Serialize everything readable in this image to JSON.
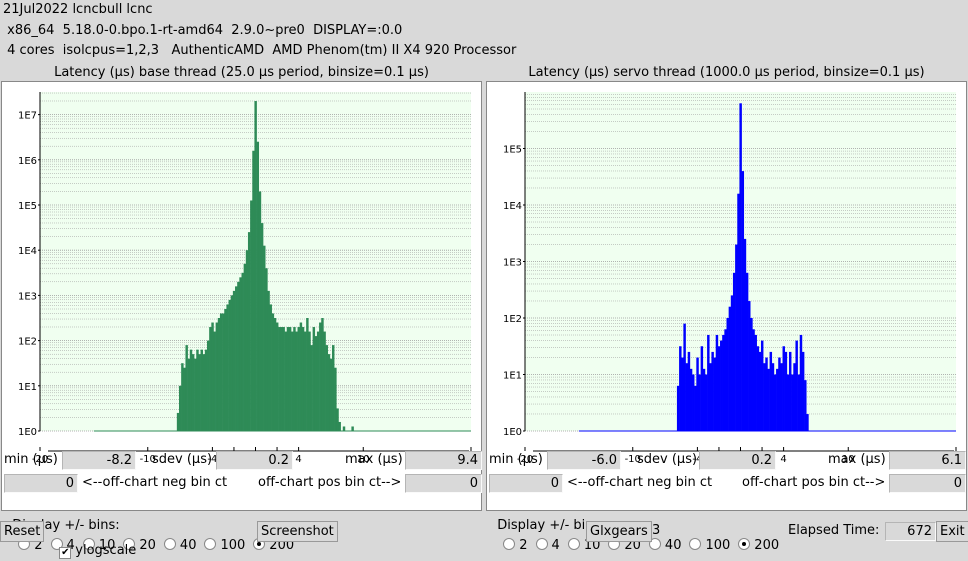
{
  "header": {
    "line1": "21Jul2022 lcncbull lcnc",
    "line2": " x86_64  5.18.0-0.bpo.1-rt-amd64  2.9.0~pre0  DISPLAY=:0.0",
    "line3": " 4 cores  isolcpus=1,2,3   AuthenticAMD  AMD Phenom(tm) II X4 920 Processor"
  },
  "colors": {
    "base": "#2e8b57",
    "servo": "#0000ff",
    "grid": "#9a9a9a",
    "plot_bg": "#f0fff0"
  },
  "panels": [
    {
      "title": "Latency (µs) base thread (25.0 µs period, binsize=0.1 µs)",
      "min_label": "min (µs)",
      "min": "-8.2",
      "sdev_label": "sdev (µs)",
      "sdev": "0.2",
      "max_label": "max (µs)",
      "max": "9.4",
      "neg_value": "0",
      "neg_label": "<--off-chart neg bin ct",
      "pos_label": "off-chart pos bin ct-->",
      "pos_value": "0",
      "bins_label": "Display +/- bins:",
      "bins": [
        "2",
        "4",
        "10",
        "20",
        "40",
        "100",
        "200"
      ],
      "bins_selected": "200"
    },
    {
      "title": "Latency (µs) servo thread (1000.0 µs period, binsize=0.1 µs)",
      "min_label": "min (µs)",
      "min": "-6.0",
      "sdev_label": "sdev (µs)",
      "sdev": "0.2",
      "max_label": "max (µs)",
      "max": "6.1",
      "neg_value": "0",
      "neg_label": "<--off-chart neg bin ct",
      "pos_label": "off-chart pos bin ct-->",
      "pos_value": "0",
      "bins_label": "Display +/- bins:",
      "bins": [
        "2",
        "4",
        "10",
        "20",
        "40",
        "100",
        "200"
      ],
      "bins_selected": "200"
    }
  ],
  "bottom": {
    "reset": "Reset",
    "ylogscale": "ylogscale",
    "ylogscale_checked": true,
    "screenshot": "Screenshot",
    "glxgears": "Glxgears",
    "glxgears_count": "3",
    "elapsed_label": "Elapsed Time:",
    "elapsed_value": "672",
    "exit": "Exit"
  },
  "chart_data": [
    {
      "type": "bar",
      "title": "Latency (µs) base thread (25.0 µs period, binsize=0.1 µs)",
      "xlabel": "",
      "ylabel": "",
      "xlim": [
        -20,
        20
      ],
      "ylim_log10": [
        0,
        7.3
      ],
      "ylog": true,
      "grid": true,
      "x_ticks": [
        -20,
        -10,
        -4,
        -2,
        0,
        2,
        4,
        10,
        20
      ],
      "y_ticks": [
        "1E0",
        "1E1",
        "1E2",
        "1E3",
        "1E4",
        "1E5",
        "1E6",
        "1E7"
      ],
      "series": [
        {
          "points": [
            [
              -7.2,
              0.4
            ],
            [
              -7.0,
              1.0
            ],
            [
              -6.8,
              1.5
            ],
            [
              -6.6,
              1.4
            ],
            [
              -6.4,
              1.9
            ],
            [
              -6.2,
              1.6
            ],
            [
              -6.0,
              1.8
            ],
            [
              -5.8,
              1.7
            ],
            [
              -5.6,
              1.6
            ],
            [
              -5.4,
              1.8
            ],
            [
              -5.2,
              1.7
            ],
            [
              -5.0,
              1.8
            ],
            [
              -4.8,
              1.7
            ],
            [
              -4.6,
              1.8
            ],
            [
              -4.4,
              2.0
            ],
            [
              -4.2,
              2.3
            ],
            [
              -4.0,
              2.4
            ],
            [
              -3.8,
              2.2
            ],
            [
              -3.6,
              2.4
            ],
            [
              -3.4,
              2.5
            ],
            [
              -3.2,
              2.6
            ],
            [
              -3.0,
              2.6
            ],
            [
              -2.8,
              2.7
            ],
            [
              -2.6,
              2.8
            ],
            [
              -2.4,
              2.9
            ],
            [
              -2.2,
              3.0
            ],
            [
              -2.0,
              3.1
            ],
            [
              -1.8,
              3.2
            ],
            [
              -1.6,
              3.3
            ],
            [
              -1.4,
              3.4
            ],
            [
              -1.2,
              3.5
            ],
            [
              -1.0,
              3.7
            ],
            [
              -0.8,
              4.0
            ],
            [
              -0.6,
              4.4
            ],
            [
              -0.4,
              5.1
            ],
            [
              -0.2,
              6.2
            ],
            [
              0.0,
              7.3
            ],
            [
              0.2,
              6.4
            ],
            [
              0.4,
              5.3
            ],
            [
              0.6,
              4.6
            ],
            [
              0.8,
              4.1
            ],
            [
              1.0,
              3.6
            ],
            [
              1.2,
              3.1
            ],
            [
              1.4,
              2.8
            ],
            [
              1.6,
              2.6
            ],
            [
              1.8,
              2.5
            ],
            [
              2.0,
              2.4
            ],
            [
              2.2,
              2.3
            ],
            [
              2.4,
              2.3
            ],
            [
              2.6,
              2.3
            ],
            [
              2.8,
              2.2
            ],
            [
              3.0,
              2.3
            ],
            [
              3.2,
              2.3
            ],
            [
              3.4,
              2.2
            ],
            [
              3.6,
              2.3
            ],
            [
              3.8,
              2.2
            ],
            [
              4.0,
              2.3
            ],
            [
              4.2,
              2.4
            ],
            [
              4.4,
              2.3
            ],
            [
              4.6,
              2.2
            ],
            [
              4.8,
              2.5
            ],
            [
              5.0,
              2.2
            ],
            [
              5.2,
              1.9
            ],
            [
              5.4,
              2.3
            ],
            [
              5.6,
              2.1
            ],
            [
              5.8,
              2.2
            ],
            [
              6.0,
              2.4
            ],
            [
              6.2,
              2.5
            ],
            [
              6.4,
              2.2
            ],
            [
              6.6,
              1.9
            ],
            [
              6.8,
              1.7
            ],
            [
              7.0,
              1.6
            ],
            [
              7.2,
              1.9
            ],
            [
              7.4,
              1.4
            ],
            [
              7.6,
              0.5
            ],
            [
              7.8,
              0.2
            ],
            [
              8.2,
              0.1
            ],
            [
              9.0,
              0.1
            ]
          ]
        }
      ]
    },
    {
      "type": "bar",
      "title": "Latency (µs) servo thread (1000.0 µs period, binsize=0.1 µs)",
      "xlabel": "",
      "ylabel": "",
      "xlim": [
        -20,
        20
      ],
      "ylim_log10": [
        0,
        5.8
      ],
      "ylog": true,
      "grid": true,
      "x_ticks": [
        -20,
        -10,
        -4,
        -2,
        0,
        2,
        4,
        10,
        20
      ],
      "y_ticks": [
        "1E0",
        "1E1",
        "1E2",
        "1E3",
        "1E4",
        "1E5"
      ],
      "series": [
        {
          "points": [
            [
              -5.8,
              0.8
            ],
            [
              -5.6,
              1.5
            ],
            [
              -5.4,
              1.3
            ],
            [
              -5.2,
              1.9
            ],
            [
              -5.0,
              1.2
            ],
            [
              -4.8,
              1.4
            ],
            [
              -4.6,
              1.1
            ],
            [
              -4.4,
              1.0
            ],
            [
              -4.2,
              0.8
            ],
            [
              -4.0,
              1.3
            ],
            [
              -3.8,
              1.0
            ],
            [
              -3.6,
              1.5
            ],
            [
              -3.4,
              1.1
            ],
            [
              -3.2,
              1.0
            ],
            [
              -3.0,
              1.7
            ],
            [
              -2.8,
              1.2
            ],
            [
              -2.6,
              1.4
            ],
            [
              -2.4,
              1.3
            ],
            [
              -2.2,
              1.7
            ],
            [
              -2.0,
              1.5
            ],
            [
              -1.8,
              1.6
            ],
            [
              -1.6,
              1.7
            ],
            [
              -1.4,
              1.8
            ],
            [
              -1.2,
              2.0
            ],
            [
              -1.0,
              2.2
            ],
            [
              -0.8,
              2.4
            ],
            [
              -0.6,
              2.8
            ],
            [
              -0.4,
              3.3
            ],
            [
              -0.2,
              4.2
            ],
            [
              0.0,
              5.8
            ],
            [
              0.2,
              4.6
            ],
            [
              0.4,
              3.4
            ],
            [
              0.6,
              2.8
            ],
            [
              0.8,
              2.3
            ],
            [
              1.0,
              2.0
            ],
            [
              1.2,
              1.8
            ],
            [
              1.4,
              1.7
            ],
            [
              1.6,
              1.5
            ],
            [
              1.8,
              1.4
            ],
            [
              2.0,
              1.6
            ],
            [
              2.2,
              1.2
            ],
            [
              2.4,
              1.3
            ],
            [
              2.6,
              1.1
            ],
            [
              2.8,
              1.4
            ],
            [
              3.0,
              1.2
            ],
            [
              3.2,
              1.0
            ],
            [
              3.4,
              1.1
            ],
            [
              3.6,
              1.3
            ],
            [
              3.8,
              1.2
            ],
            [
              4.0,
              1.5
            ],
            [
              4.2,
              1.4
            ],
            [
              4.4,
              1.0
            ],
            [
              4.6,
              1.4
            ],
            [
              4.8,
              1.0
            ],
            [
              5.0,
              1.2
            ],
            [
              5.2,
              1.6
            ],
            [
              5.4,
              1.0
            ],
            [
              5.6,
              1.7
            ],
            [
              5.8,
              1.4
            ],
            [
              6.0,
              0.9
            ],
            [
              6.2,
              0.3
            ]
          ]
        }
      ]
    }
  ]
}
